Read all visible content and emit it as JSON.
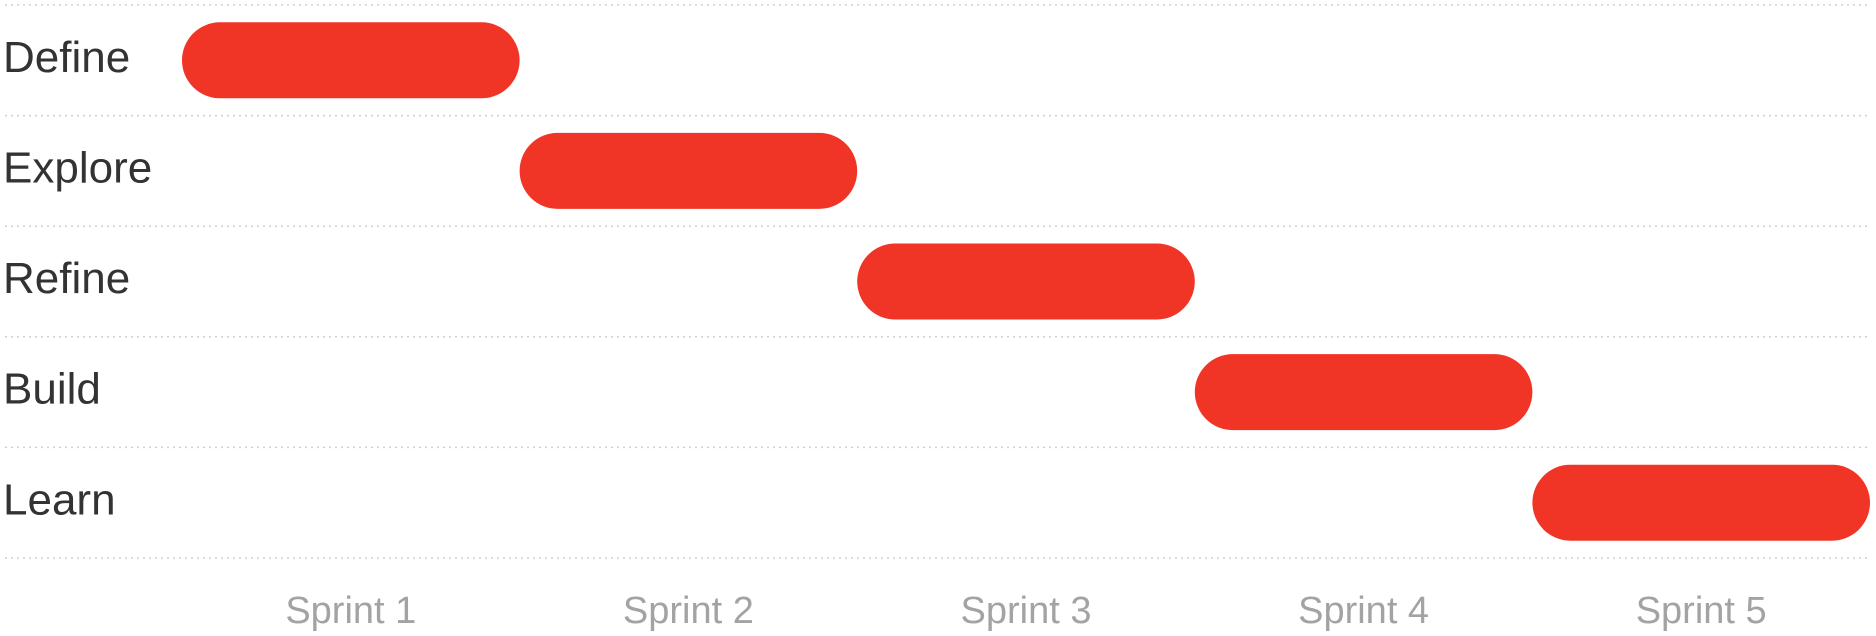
{
  "chart_data": {
    "type": "bar",
    "orientation": "horizontal-gantt",
    "rows": [
      "Define",
      "Explore",
      "Refine",
      "Build",
      "Learn"
    ],
    "sprints": [
      "Sprint 1",
      "Sprint 2",
      "Sprint 3",
      "Sprint 4",
      "Sprint 5"
    ],
    "tasks": [
      {
        "label": "Define",
        "sprint": "Sprint 1",
        "start": 1,
        "end": 2
      },
      {
        "label": "Explore",
        "sprint": "Sprint 2",
        "start": 2,
        "end": 3
      },
      {
        "label": "Refine",
        "sprint": "Sprint 3",
        "start": 3,
        "end": 4
      },
      {
        "label": "Build",
        "sprint": "Sprint 4",
        "start": 4,
        "end": 5
      },
      {
        "label": "Learn",
        "sprint": "Sprint 5",
        "start": 5,
        "end": 6
      }
    ],
    "xlim": [
      1,
      6
    ],
    "grid": true,
    "bar_color": "#f03426"
  }
}
